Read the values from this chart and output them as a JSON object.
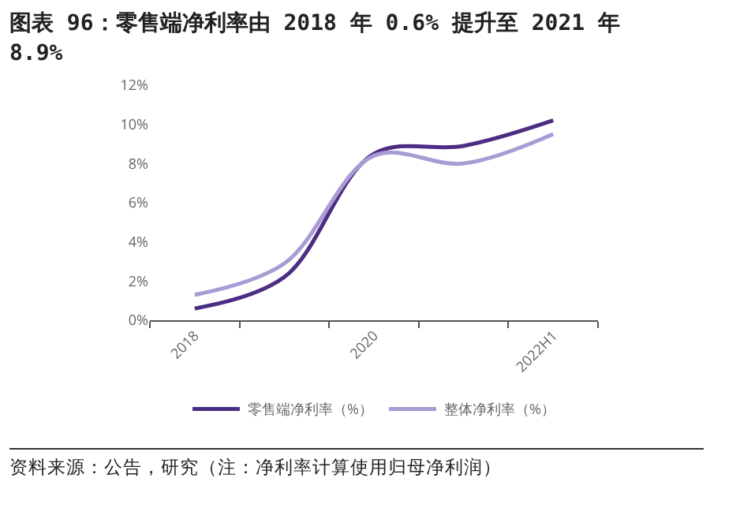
{
  "chart_data": {
    "type": "line",
    "title": "图表 96：零售端净利率由 2018 年 0.6% 提升至 2021 年 8.9%",
    "categories": [
      "2018",
      null,
      "2020",
      null,
      "2022H1"
    ],
    "series": [
      {
        "name": "零售端净利率（%）",
        "color": "#4b2d83",
        "values": [
          0.6,
          2.2,
          8.5,
          8.9,
          10.2
        ]
      },
      {
        "name": "整体净利率（%）",
        "color": "#a99bd3",
        "values": [
          1.3,
          2.9,
          8.4,
          8.0,
          9.5
        ]
      }
    ],
    "ylim": [
      0,
      12
    ],
    "yticks": [
      {
        "value": 0,
        "label": "0%"
      },
      {
        "value": 2,
        "label": "2%"
      },
      {
        "value": 4,
        "label": "4%"
      },
      {
        "value": 6,
        "label": "6%"
      },
      {
        "value": 8,
        "label": "8%"
      },
      {
        "value": 10,
        "label": "10%"
      },
      {
        "value": 12,
        "label": "12%"
      }
    ],
    "grid": false,
    "legend": "bottom",
    "marker": "none",
    "line_style": "solid",
    "annotations": [
      "资料来源：公告，研究（注：净利率计算使用归母净利润）"
    ]
  }
}
